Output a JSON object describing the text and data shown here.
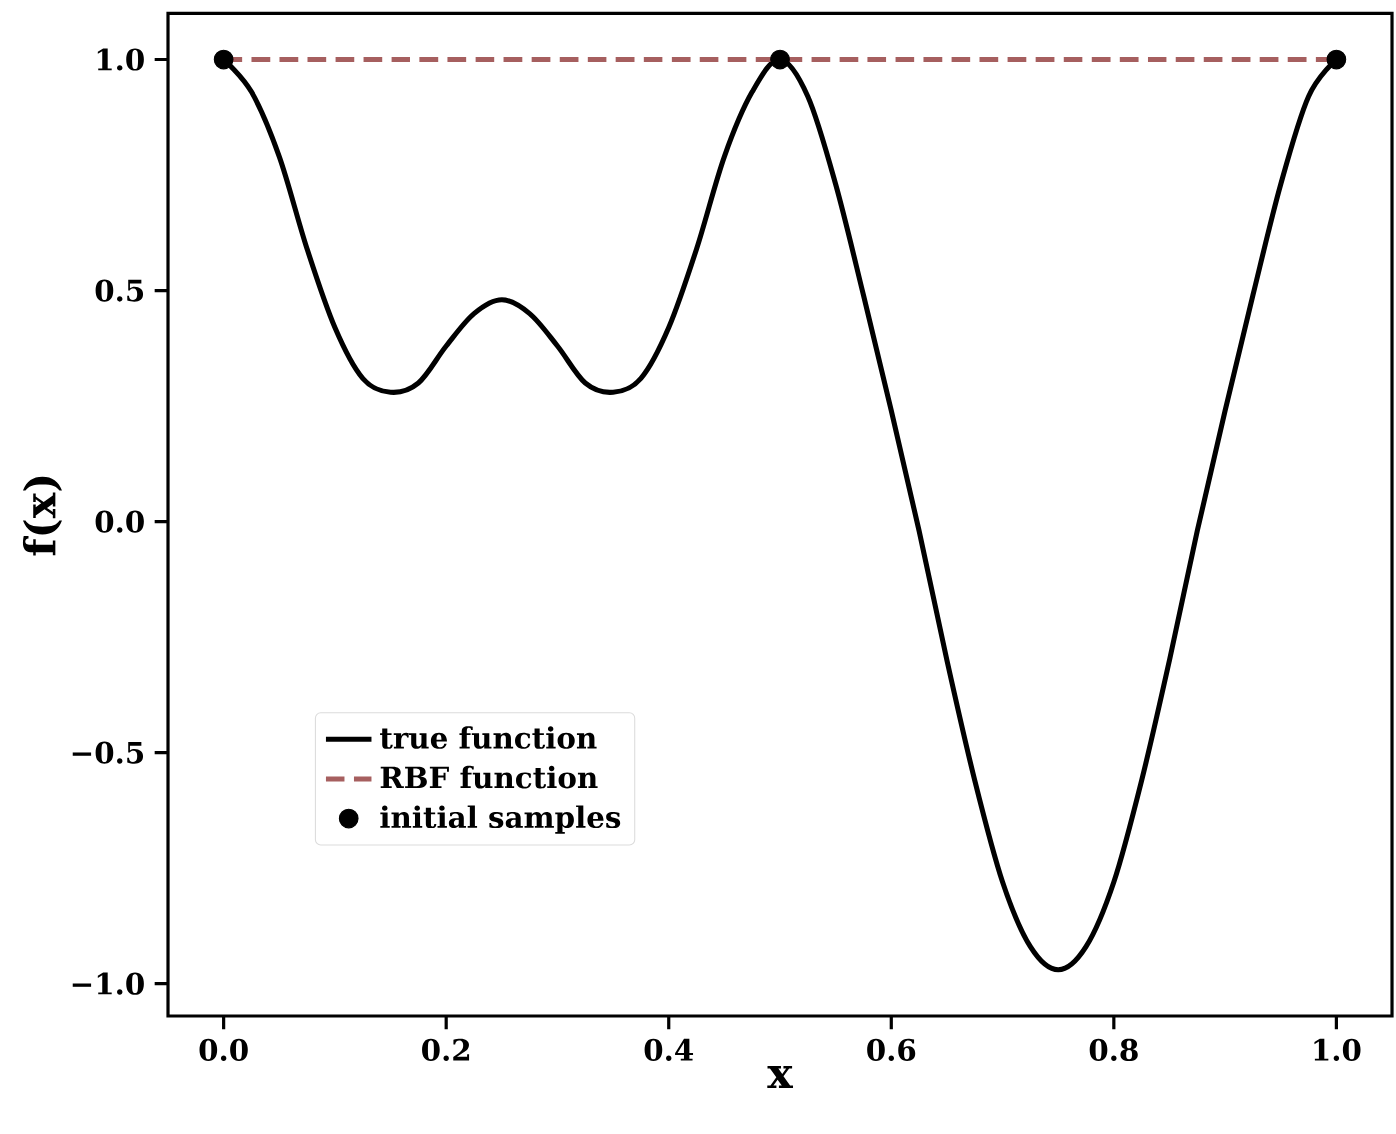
{
  "chart_data": {
    "type": "line",
    "xlabel": "x",
    "ylabel": "f(x)",
    "xlim": [
      -0.05,
      1.05
    ],
    "ylim": [
      -1.07,
      1.1
    ],
    "xticks": [
      {
        "value": 0,
        "label": "0.0"
      },
      {
        "value": 0.2,
        "label": "0.2"
      },
      {
        "value": 0.4,
        "label": "0.4"
      },
      {
        "value": 0.6,
        "label": "0.6"
      },
      {
        "value": 0.8,
        "label": "0.8"
      },
      {
        "value": 1,
        "label": "1.0"
      }
    ],
    "yticks": [
      {
        "value": -1,
        "label": "−1.0"
      },
      {
        "value": -0.5,
        "label": "−0.5"
      },
      {
        "value": 0,
        "label": "0.0"
      },
      {
        "value": 0.5,
        "label": "0.5"
      },
      {
        "value": 1,
        "label": "1.0"
      }
    ],
    "grid": false,
    "legend": "bottom left",
    "series": [
      {
        "name": "true function",
        "color": "#000000",
        "line_style": "solid",
        "marker": "none",
        "x": [
          0,
          0.025,
          0.05,
          0.075,
          0.1,
          0.125,
          0.15,
          0.175,
          0.2,
          0.225,
          0.25,
          0.275,
          0.3,
          0.325,
          0.35,
          0.375,
          0.4,
          0.425,
          0.45,
          0.475,
          0.5,
          0.525,
          0.55,
          0.575,
          0.6,
          0.625,
          0.65,
          0.675,
          0.7,
          0.725,
          0.75,
          0.775,
          0.8,
          0.825,
          0.85,
          0.875,
          0.9,
          0.925,
          0.95,
          0.975,
          1
        ],
        "values": [
          1.0,
          0.93,
          0.79,
          0.59,
          0.42,
          0.31,
          0.28,
          0.3,
          0.38,
          0.45,
          0.48,
          0.45,
          0.38,
          0.3,
          0.28,
          0.31,
          0.42,
          0.59,
          0.79,
          0.93,
          1.0,
          0.92,
          0.73,
          0.49,
          0.24,
          -0.02,
          -0.3,
          -0.56,
          -0.78,
          -0.92,
          -0.97,
          -0.92,
          -0.78,
          -0.56,
          -0.3,
          -0.02,
          0.24,
          0.49,
          0.73,
          0.92,
          1.0
        ]
      },
      {
        "name": "RBF function",
        "color": "#a65f5f",
        "line_style": "dashed",
        "marker": "none",
        "x": [
          0,
          0.5,
          1
        ],
        "values": [
          1,
          1,
          1
        ]
      },
      {
        "name": "initial samples",
        "type": "scatter",
        "color": "#000000",
        "marker": "circle",
        "x": [
          0,
          0.5,
          1
        ],
        "values": [
          1,
          1,
          1
        ]
      }
    ]
  }
}
